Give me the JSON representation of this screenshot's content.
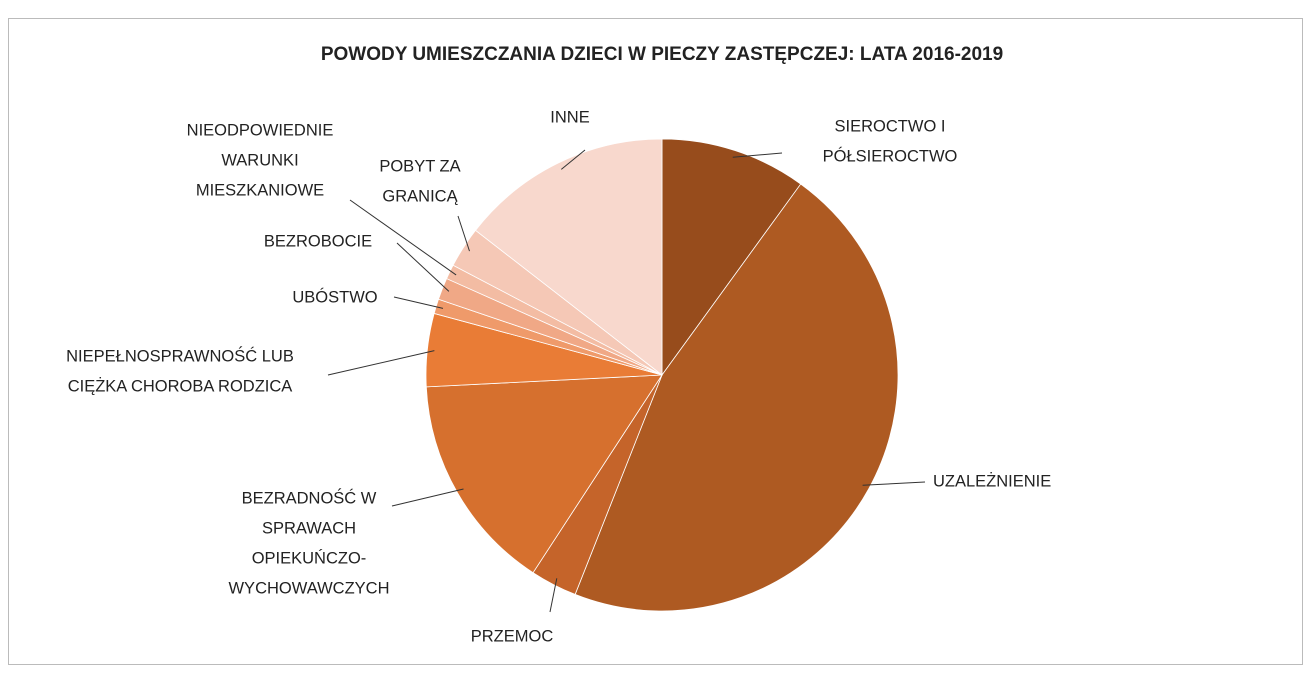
{
  "chart_data": {
    "type": "pie",
    "title": "POWODY UMIESZCZANIA DZIECI W PIECZY ZASTĘPCZEJ: LATA 2016-2019",
    "categories": [
      [
        "SIEROCTWO I",
        "PÓŁSIEROCTWO"
      ],
      [
        "UZALEŻNIENIE"
      ],
      [
        "PRZEMOC"
      ],
      [
        "BEZRADNOŚĆ W",
        "SPRAWACH",
        "OPIEKUŃCZO-",
        "WYCHOWAWCZYCH"
      ],
      [
        "NIEPEŁNOSPRAWNOŚĆ LUB",
        "CIĘŻKA CHOROBA RODZICA"
      ],
      [
        "UBÓSTWO"
      ],
      [
        "BEZROBOCIE"
      ],
      [
        "NIEODPOWIEDNIE",
        "WARUNKI",
        "MIESZKANIOWE"
      ],
      [
        "POBYT ZA",
        "GRANICĄ"
      ],
      [
        "INNE"
      ]
    ],
    "values": [
      10,
      46,
      3.2,
      15,
      5,
      1,
      1.5,
      1,
      2.8,
      14.5
    ],
    "colors": [
      "#974c1c",
      "#ae5a22",
      "#c5642a",
      "#d6702e",
      "#e97c36",
      "#ef9a6a",
      "#f0a886",
      "#f3bca3",
      "#f5c8b6",
      "#f8d8cd"
    ]
  }
}
